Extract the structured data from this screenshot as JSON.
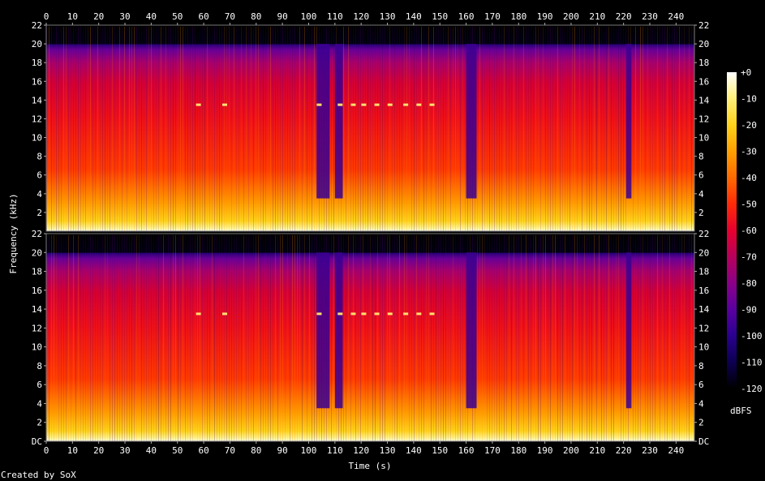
{
  "chart_data": {
    "type": "heatmap",
    "title": "",
    "xlabel": "Time (s)",
    "ylabel": "Frequency (kHz)",
    "xlim": [
      0,
      247
    ],
    "ylim": [
      0,
      22
    ],
    "x_ticks": [
      0,
      10,
      20,
      30,
      40,
      50,
      60,
      70,
      80,
      90,
      100,
      110,
      120,
      130,
      140,
      150,
      160,
      170,
      180,
      190,
      200,
      210,
      220,
      230,
      240
    ],
    "channels": [
      {
        "y_ticks": [
          "2",
          "4",
          "6",
          "8",
          "10",
          "12",
          "14",
          "16",
          "18",
          "20",
          "22"
        ]
      },
      {
        "y_ticks": [
          "DC",
          "2",
          "4",
          "6",
          "8",
          "10",
          "12",
          "14",
          "16",
          "18",
          "20",
          "22"
        ]
      }
    ],
    "colorbar": {
      "label": "dBFS",
      "min": -120,
      "max": 0,
      "ticks": [
        "+0",
        "-10",
        "-20",
        "-30",
        "-40",
        "-50",
        "-60",
        "-70",
        "-80",
        "-90",
        "-100",
        "-110",
        "-120"
      ],
      "colors": [
        "#ffffff",
        "#fff07a",
        "#ffd21a",
        "#ffa000",
        "#ff6a00",
        "#ff2a08",
        "#e8002e",
        "#b8005a",
        "#8a0088",
        "#5a00a0",
        "#2a0090",
        "#0c0050",
        "#000000"
      ]
    },
    "content_cutoff_khz": 20,
    "quiet_sections_s": [
      [
        103,
        108
      ],
      [
        110,
        113
      ],
      [
        160,
        164
      ],
      [
        221,
        223
      ]
    ],
    "tonal_events": {
      "frequency_khz": 13.5,
      "times_s": [
        58,
        68,
        104,
        112,
        117,
        121,
        126,
        131,
        137,
        142,
        147
      ]
    }
  },
  "footer": {
    "credit": "Created by SoX"
  }
}
